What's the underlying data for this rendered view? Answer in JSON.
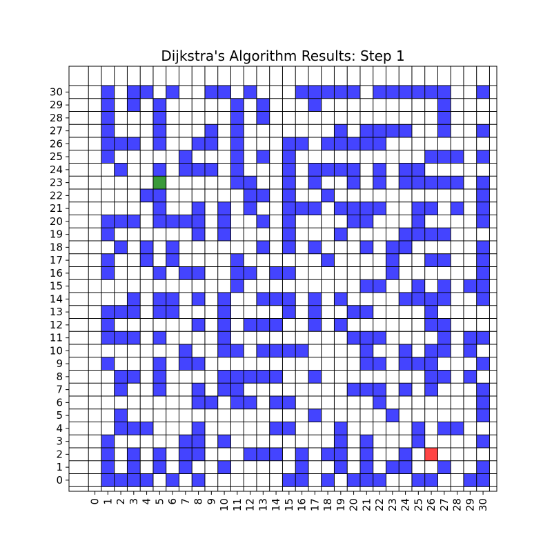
{
  "chart_data": {
    "type": "heatmap",
    "title": "Dijkstra's Algorithm Results: Step 1",
    "xlabel": "",
    "ylabel": "",
    "x_ticks": [
      "0",
      "1",
      "2",
      "3",
      "4",
      "5",
      "6",
      "7",
      "8",
      "9",
      "10",
      "11",
      "12",
      "13",
      "14",
      "15",
      "16",
      "17",
      "18",
      "19",
      "20",
      "21",
      "22",
      "23",
      "24",
      "25",
      "26",
      "27",
      "28",
      "29",
      "30"
    ],
    "y_ticks": [
      "0",
      "1",
      "2",
      "3",
      "4",
      "5",
      "6",
      "7",
      "8",
      "9",
      "10",
      "11",
      "12",
      "13",
      "14",
      "15",
      "16",
      "17",
      "18",
      "19",
      "20",
      "21",
      "22",
      "23",
      "24",
      "25",
      "26",
      "27",
      "28",
      "29",
      "30"
    ],
    "xlim": [
      -1.5,
      31.5
    ],
    "ylim": [
      -1.5,
      31.5
    ],
    "grid": true,
    "cell_colors": {
      "wall": "#4444ff",
      "start": "#3a9a3a",
      "goal": "#ff4444",
      "empty": "#ffffff",
      "gridline": "#000000"
    },
    "rows_top_to_bottom": [
      "................................",
      "..................................",
      "................................",
      "................................"
    ],
    "grid_rows": [
      "..#.##.#.##.#......#####.#####.#.",
      "..#..#..#..#..............#....",
      "................................"
    ],
    "cells": [
      "................................."
    ],
    "maze": [
      ".#..##.#..#.......#.##...#.....#",
      ".#..#..#...#...#..#.##.....#...#",
      ".##.....#.###.#..##...##...#.....",
      "................................"
    ],
    "legend": "none",
    "walls_by_row": {
      "30": [
        1,
        3,
        4,
        6,
        9,
        10,
        12,
        16,
        17,
        18,
        19,
        20,
        22,
        23,
        24,
        25,
        26,
        27,
        30
      ],
      "29": [
        1,
        3,
        5,
        11,
        13,
        17,
        27
      ],
      "28": [
        1,
        5,
        11,
        13,
        27
      ],
      "27": [
        1,
        5,
        9,
        11,
        19,
        21,
        22,
        23,
        24,
        27,
        30
      ],
      "26": [
        1,
        2,
        3,
        5,
        8,
        9,
        11,
        15,
        16,
        18,
        19,
        20,
        21,
        22
      ],
      "25": [
        1,
        7,
        11,
        13,
        15,
        26,
        27,
        28,
        30
      ],
      "24": [
        2,
        5,
        7,
        8,
        9,
        11,
        15,
        17,
        18,
        19,
        20,
        22,
        24,
        25
      ],
      "23": [
        11,
        12,
        15,
        17,
        20,
        22,
        24,
        25,
        26,
        27,
        28,
        30
      ],
      "22": [
        4,
        5,
        12,
        13,
        15,
        18,
        30
      ],
      "21": [
        5,
        8,
        10,
        12,
        15,
        16,
        17,
        19,
        20,
        21,
        22,
        25,
        26,
        28,
        30
      ],
      "20": [
        1,
        2,
        3,
        5,
        6,
        7,
        8,
        10,
        13,
        15,
        20,
        21,
        25,
        30
      ],
      "19": [
        1,
        8,
        10,
        15,
        19,
        24,
        25,
        26,
        27
      ],
      "18": [
        2,
        4,
        6,
        13,
        15,
        17,
        21,
        23,
        24,
        30
      ],
      "17": [
        1,
        4,
        6,
        11,
        18,
        23,
        26,
        27,
        30
      ],
      "16": [
        1,
        5,
        7,
        8,
        11,
        12,
        14,
        15,
        23,
        30
      ],
      "15": [
        11,
        21,
        22,
        25,
        27,
        29,
        30
      ],
      "14": [
        3,
        5,
        6,
        8,
        10,
        13,
        14,
        15,
        17,
        19,
        24,
        25,
        26,
        27,
        30
      ],
      "13": [
        1,
        2,
        3,
        5,
        6,
        10,
        15,
        17,
        20,
        21,
        26
      ],
      "12": [
        1,
        8,
        10,
        12,
        13,
        14,
        17,
        19,
        26,
        27
      ],
      "11": [
        1,
        2,
        3,
        5,
        10,
        20,
        21,
        22,
        27,
        29,
        30
      ],
      "10": [
        7,
        10,
        11,
        13,
        14,
        15,
        16,
        21,
        24,
        26,
        27,
        29
      ],
      "9": [
        1,
        5,
        7,
        8,
        21,
        22,
        24,
        25,
        26,
        30
      ],
      "8": [
        2,
        3,
        5,
        10,
        11,
        12,
        13,
        14,
        17,
        26,
        27,
        29
      ],
      "7": [
        2,
        5,
        8,
        10,
        11,
        20,
        21,
        22,
        24,
        26,
        30
      ],
      "6": [
        8,
        9,
        11,
        12,
        14,
        15,
        22,
        30
      ],
      "5": [
        2,
        17,
        23,
        30
      ],
      "4": [
        2,
        3,
        4,
        8,
        14,
        15,
        19,
        25,
        27,
        28
      ],
      "3": [
        1,
        7,
        8,
        10,
        19,
        21,
        25,
        30
      ],
      "2": [
        1,
        3,
        5,
        7,
        8,
        12,
        13,
        14,
        16,
        18,
        19,
        21,
        24
      ],
      "1": [
        1,
        3,
        5,
        7,
        10,
        16,
        19,
        21,
        23,
        24,
        27,
        30
      ],
      "0": [
        1,
        2,
        3,
        4,
        6,
        8,
        15,
        16,
        18,
        20,
        21,
        22,
        25,
        26,
        29,
        30
      ]
    },
    "start": {
      "x": 5,
      "y": 23
    },
    "goal": {
      "x": 26,
      "y": 2
    }
  }
}
